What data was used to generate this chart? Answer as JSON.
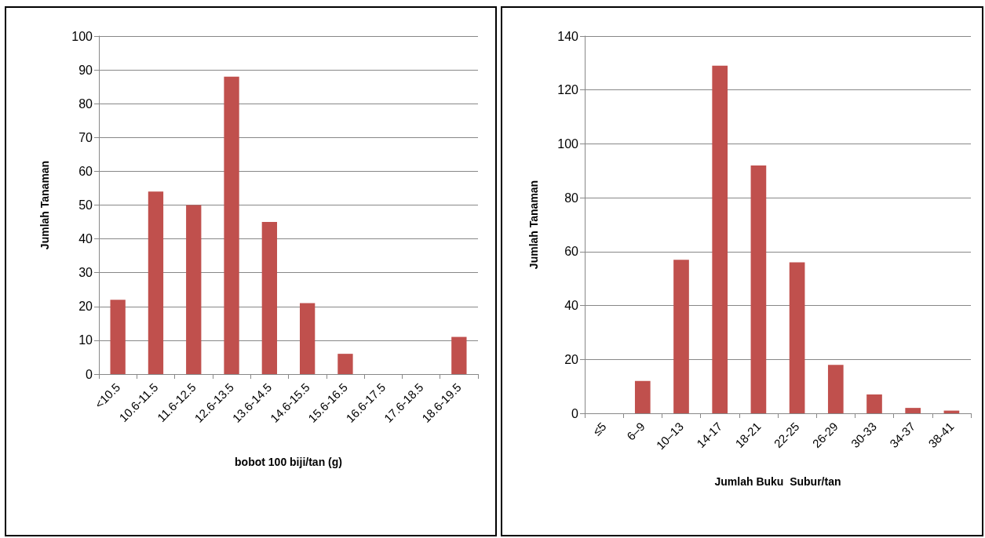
{
  "chart_data": [
    {
      "type": "bar",
      "xlabel": "bobot 100 biji/tan (g)",
      "ylabel": "Jumlah Tanaman",
      "categories": [
        "<10.5",
        "10.6-11.5",
        "11.6-12.5",
        "12.6-13.5",
        "13.6-14.5",
        "14.6-15.5",
        "15.6-16.5",
        "16.6-17.5",
        "17.6-18.5",
        "18.6-19.5"
      ],
      "values": [
        22,
        54,
        50,
        88,
        45,
        21,
        6,
        0,
        0,
        11
      ],
      "color": "#c0504d",
      "ylim": [
        0,
        100
      ],
      "yticks": [
        0,
        10,
        20,
        30,
        40,
        50,
        60,
        70,
        80,
        90,
        100
      ],
      "grid": "y"
    },
    {
      "type": "bar",
      "xlabel": "Jumlah Buku  Subur/tan",
      "ylabel": "Jumlah Tanaman",
      "categories": [
        "≤5",
        "6–9",
        "10–13",
        "14-17",
        "18-21",
        "22-25",
        "26-29",
        "30-33",
        "34-37",
        "38-41"
      ],
      "values": [
        0,
        12,
        57,
        129,
        92,
        56,
        18,
        7,
        2,
        1
      ],
      "color": "#c0504d",
      "ylim": [
        0,
        140
      ],
      "yticks": [
        0,
        20,
        40,
        60,
        80,
        100,
        120,
        140
      ],
      "grid": "y"
    }
  ]
}
